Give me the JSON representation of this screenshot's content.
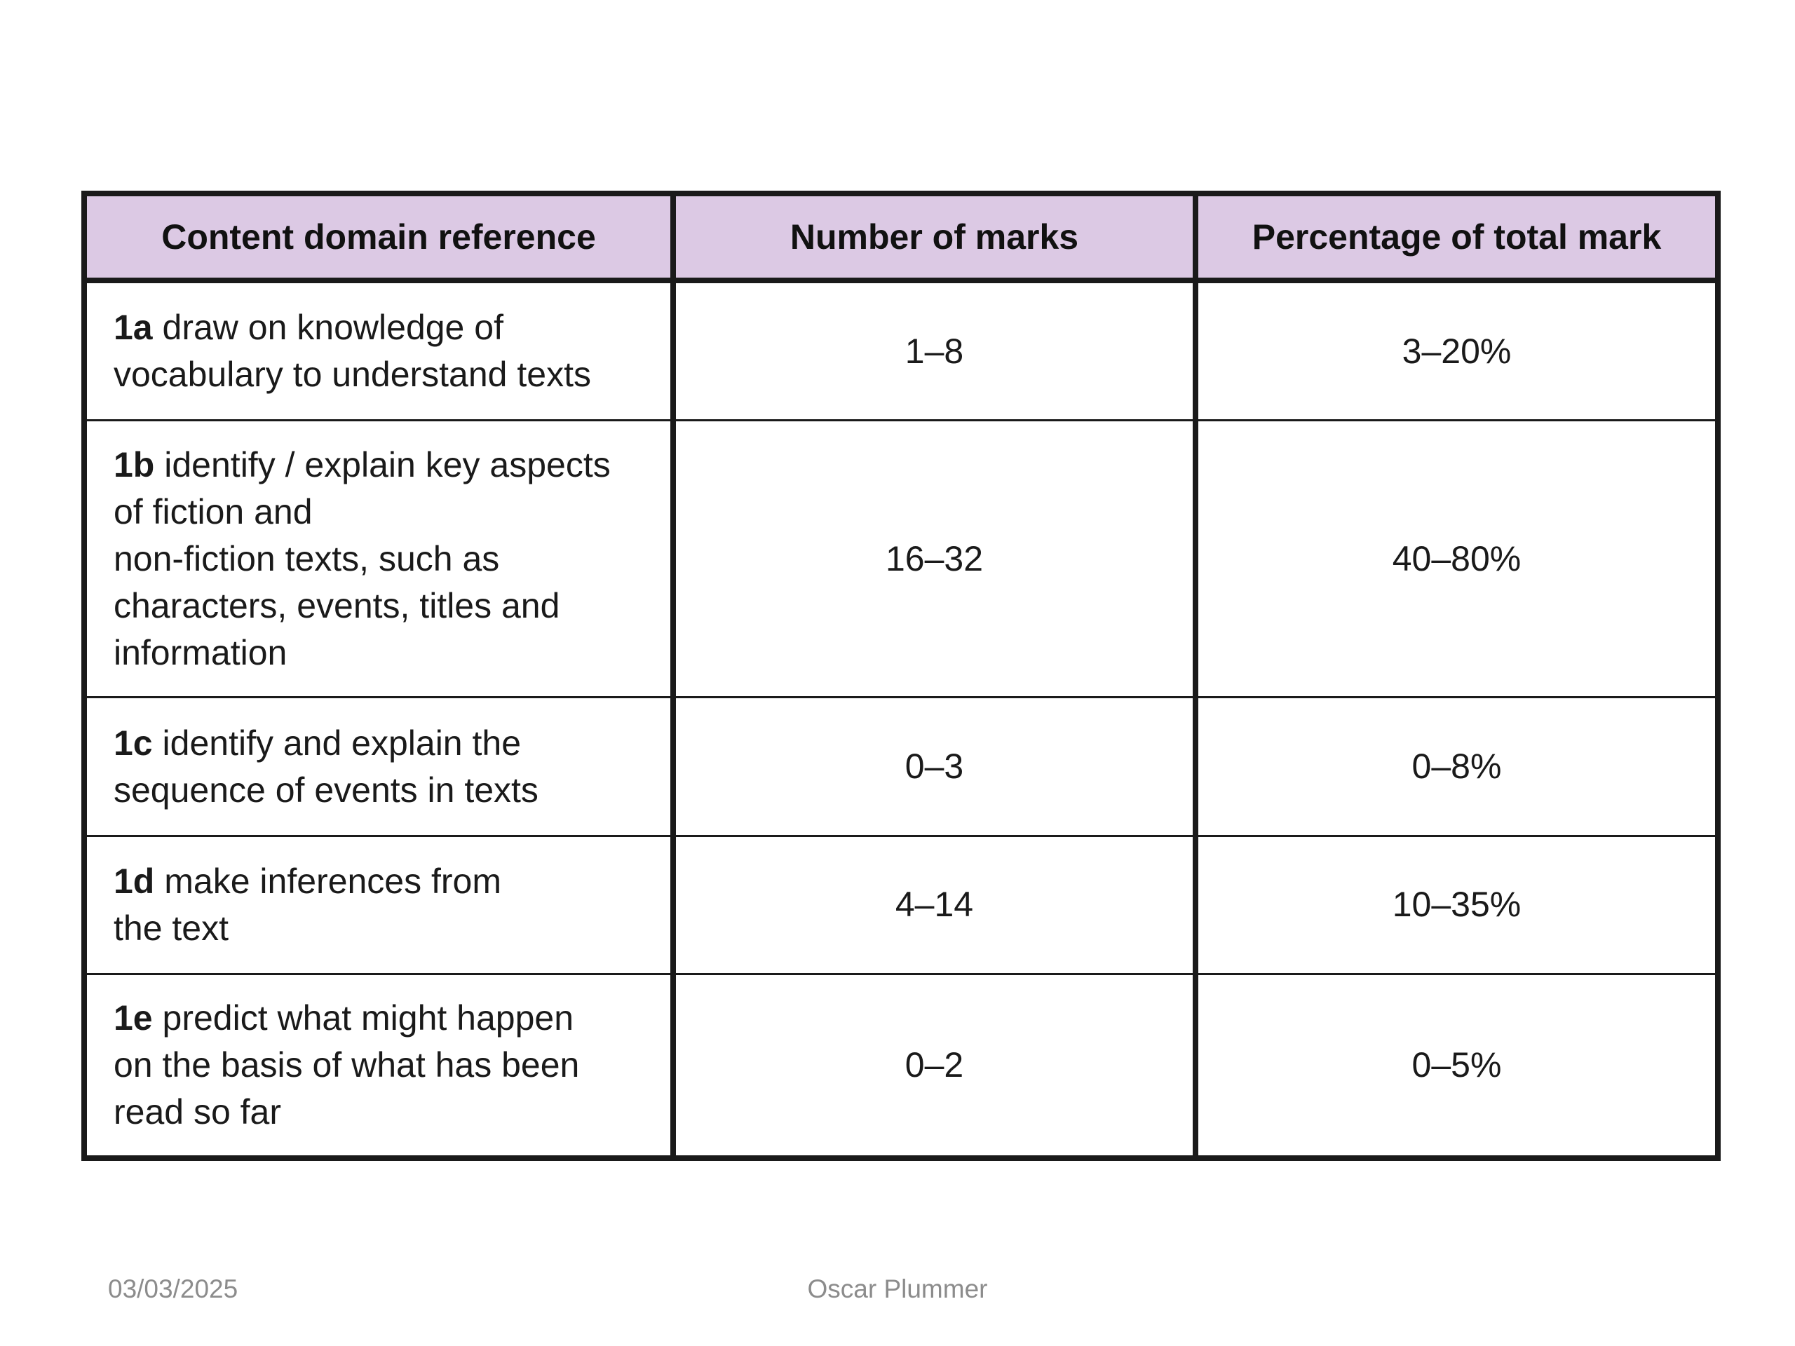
{
  "table": {
    "headers": [
      "Content domain reference",
      "Number of marks",
      "Percentage of total mark"
    ],
    "rows": [
      {
        "code": "1a",
        "description": "draw on knowledge of\nvocabulary to understand texts",
        "marks": "1–8",
        "percentage": "3–20%"
      },
      {
        "code": "1b",
        "description": "identify / explain key aspects\nof fiction and\nnon-fiction texts, such as\ncharacters, events, titles and\ninformation",
        "marks": "16–32",
        "percentage": "40–80%"
      },
      {
        "code": "1c",
        "description": "identify and explain the\nsequence of events in texts",
        "marks": "0–3",
        "percentage": "0–8%"
      },
      {
        "code": "1d",
        "description": "make inferences from\nthe text",
        "marks": "4–14",
        "percentage": "10–35%"
      },
      {
        "code": "1e",
        "description": "predict what might happen\non the basis of what has been\nread so far",
        "marks": "0–2",
        "percentage": "0–5%"
      }
    ]
  },
  "footer": {
    "date": "03/03/2025",
    "author": "Oscar Plummer"
  },
  "colors": {
    "header_background": "#dcc9e4",
    "border": "#1a1a1a",
    "footer_text": "#8c8c8c"
  }
}
